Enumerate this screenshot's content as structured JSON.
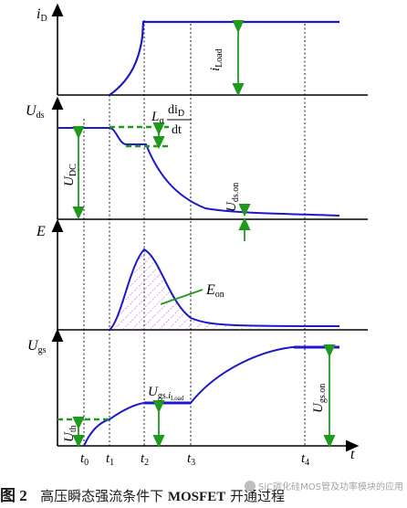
{
  "figure": {
    "caption_number": "图 2",
    "caption_text_pre": "高压瞬态强流条件下",
    "caption_text_bold": "MOSFET",
    "caption_text_post": "开通过程",
    "watermark": "SiC碳化硅MOS管及功率模块的应用"
  },
  "panels": {
    "id": {
      "axis_main": "i",
      "axis_sub": "D",
      "load_main": "i",
      "load_sub": "Load"
    },
    "uds": {
      "axis_main": "U",
      "axis_sub": "ds",
      "udc_main": "U",
      "udc_sub": "DC",
      "uon_main": "U",
      "uon_sub": "ds.on",
      "lsig_main": "L",
      "lsig_sub": "σ",
      "frac_num": "di",
      "frac_num_sub": "D",
      "frac_den": "dt"
    },
    "e": {
      "axis_main": "E",
      "eon_main": "E",
      "eon_sub": "on"
    },
    "ugs": {
      "axis_main": "U",
      "axis_sub": "gs",
      "uth_main": "U",
      "uth_sub": "th",
      "ugson_main": "U",
      "ugson_sub": "gs.on",
      "plat_main": "U",
      "plat_sub": "gs.",
      "plat_sub2_main": "i",
      "plat_sub2_sub": "Load"
    }
  },
  "time_axis": {
    "label": "t",
    "ticks": [
      {
        "main": "t",
        "sub": "0"
      },
      {
        "main": "t",
        "sub": "1"
      },
      {
        "main": "t",
        "sub": "2"
      },
      {
        "main": "t",
        "sub": "3"
      },
      {
        "main": "t",
        "sub": "4"
      }
    ]
  },
  "colors": {
    "waveform": "#1a1acc",
    "arrow": "#1f9a1f",
    "axis": "#000000",
    "hatch": "#cc44cc",
    "dash": "#000000"
  }
}
